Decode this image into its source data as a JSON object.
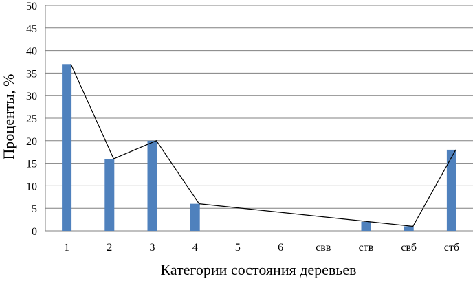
{
  "chart_data": {
    "type": "bar",
    "categories": [
      "1",
      "2",
      "3",
      "4",
      "5",
      "6",
      "свв",
      "ств",
      "свб",
      "стб"
    ],
    "values": [
      37,
      16,
      20,
      6,
      0,
      0,
      0,
      2,
      1,
      18
    ],
    "overlay_line": {
      "type": "line",
      "points": [
        {
          "category": "1",
          "value": 37
        },
        {
          "category": "2",
          "value": 16
        },
        {
          "category": "3",
          "value": 20
        },
        {
          "category": "4",
          "value": 6
        },
        {
          "category": "ств",
          "value": 2
        },
        {
          "category": "свб",
          "value": 1
        },
        {
          "category": "стб",
          "value": 18
        }
      ],
      "color": "#000000"
    },
    "title": "",
    "xlabel": "Категории состояния деревьев",
    "ylabel": "Проценты, %",
    "ylim": [
      0,
      50
    ],
    "yticks": [
      0,
      5,
      10,
      15,
      20,
      25,
      30,
      35,
      40,
      45,
      50
    ],
    "grid": true,
    "legend": "none",
    "bar_color": "#4f81bd",
    "grid_color": "#808080"
  }
}
